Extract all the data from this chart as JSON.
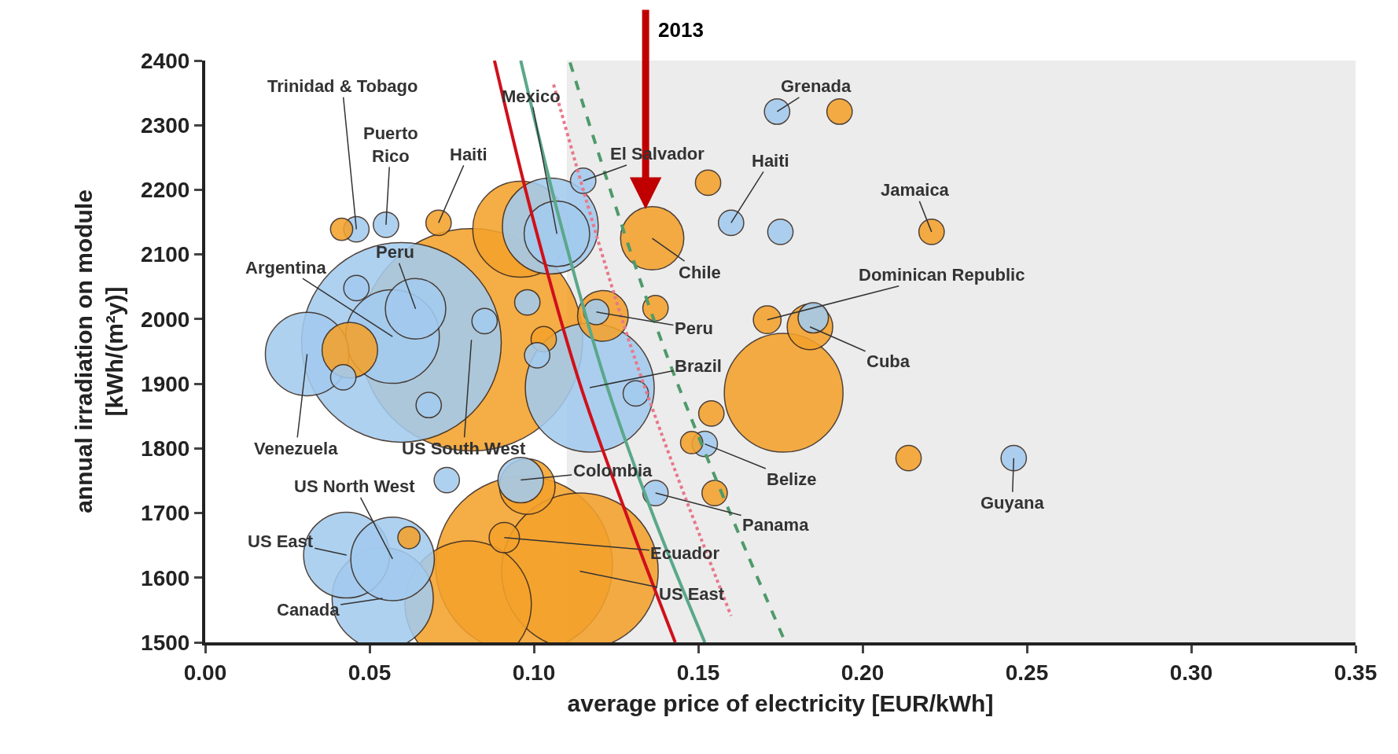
{
  "chart_data": {
    "type": "bubble",
    "xlabel": "average price of electricity [EUR/kWh]",
    "ylabel": "annual irradiation on module\n[kWh/(m²y)]",
    "series": [
      {
        "color": "#f4a22c",
        "x": [
          0.0415,
          0.071,
          0.096,
          0.081,
          0.044,
          0.103,
          0.136,
          0.121,
          0.137,
          0.176,
          0.154,
          0.148,
          0.155,
          0.098,
          0.062,
          0.097,
          0.091,
          0.114,
          0.08,
          0.153,
          0.193,
          0.221,
          0.171,
          0.184,
          0.214
        ],
        "values": [
          2139,
          2149,
          2139,
          1968,
          1952,
          1969,
          2125,
          2005,
          2017,
          1886,
          1854,
          1809,
          1731,
          1741,
          1662,
          1620,
          1662,
          1610,
          1559,
          2211,
          2321,
          2135,
          1999,
          1988,
          1785
        ],
        "sizes": [
          0.01,
          0.013,
          0.186,
          1,
          0.0625,
          0.013,
          0.081,
          0.052,
          0.013,
          0.285,
          0.013,
          0.01,
          0.013,
          0.0625,
          0.01,
          0.633,
          0.0186,
          0.496,
          0.323,
          0.013,
          0.013,
          0.013,
          0.0156,
          0.042,
          0.013
        ]
      },
      {
        "color": "#a3cbef",
        "x": [
          0.046,
          0.055,
          0.0597,
          0.057,
          0.064,
          0.046,
          0.031,
          0.042,
          0.068,
          0.085,
          0.098,
          0.101,
          0.105,
          0.107,
          0.115,
          0.119,
          0.117,
          0.131,
          0.096,
          0.0735,
          0.043,
          0.057,
          0.054,
          0.152,
          0.137,
          0.16,
          0.174,
          0.175,
          0.185,
          0.246
        ],
        "values": [
          2139,
          2146,
          1964,
          1973,
          2016,
          2048,
          1946,
          1910,
          1867,
          1997,
          2026,
          1944,
          2144,
          2132,
          2214,
          2011,
          1894,
          1885,
          1751,
          1751,
          1635,
          1629,
          1568,
          1807,
          1731,
          2149,
          2321,
          2135,
          2002,
          1785
        ],
        "sizes": [
          0.013,
          0.013,
          0.806,
          0.177,
          0.074,
          0.013,
          0.141,
          0.013,
          0.013,
          0.013,
          0.013,
          0.013,
          0.186,
          0.087,
          0.013,
          0.013,
          0.336,
          0.013,
          0.042,
          0.013,
          0.149,
          0.141,
          0.207,
          0.013,
          0.013,
          0.013,
          0.013,
          0.013,
          0.0186,
          0.013
        ]
      },
      {
        "type": "line",
        "color": "#d0101a",
        "line_style": "solid",
        "x": [
          0.088,
          0.1,
          0.114,
          0.128,
          0.143
        ],
        "values": [
          2400,
          2150,
          1900,
          1700,
          1500
        ]
      },
      {
        "type": "line",
        "color": "#5aa88a",
        "line_style": "solid",
        "x": [
          0.096,
          0.108,
          0.122,
          0.136,
          0.152
        ],
        "values": [
          2400,
          2150,
          1900,
          1700,
          1500
        ]
      },
      {
        "type": "line",
        "color": "#e8788a",
        "line_style": "dotted",
        "x": [
          0.106,
          0.13,
          0.16
        ],
        "values": [
          2363,
          1950,
          1541
        ]
      },
      {
        "type": "line",
        "color": "#4f9a6a",
        "line_style": "dashed",
        "x": [
          0.111,
          0.14,
          0.176
        ],
        "values": [
          2397,
          1950,
          1506
        ]
      }
    ],
    "xlim": [
      0,
      0.35
    ],
    "xticks": [
      {
        "value": 0,
        "label": "0.00"
      },
      0.05,
      {
        "value": 0.1,
        "label": "0.10"
      },
      0.15,
      {
        "value": 0.2,
        "label": "0.20"
      },
      0.25,
      {
        "value": 0.3,
        "label": "0.30"
      },
      0.35
    ],
    "ylim": [
      1500,
      2400
    ],
    "yticks": [
      1500,
      1600,
      1700,
      1800,
      1900,
      2000,
      2100,
      2200,
      2300,
      2400
    ],
    "bands": [
      {
        "axis": "x",
        "from": 0.11,
        "to": 0.35,
        "color": "#ececec"
      }
    ],
    "grid": false,
    "annotations": [
      {
        "text": "2013",
        "x": 0.134,
        "y": 2170
      },
      {
        "text": "Trinidad & Tobago",
        "x": 0.046,
        "y": 2139
      },
      {
        "text": "Puerto\nRico",
        "x": 0.055,
        "y": 2146
      },
      {
        "text": "Haiti",
        "x": 0.071,
        "y": 2149
      },
      {
        "text": "Mexico",
        "x": 0.107,
        "y": 2132
      },
      {
        "text": "El Salvador",
        "x": 0.115,
        "y": 2214
      },
      {
        "text": "Haiti",
        "x": 0.16,
        "y": 2149
      },
      {
        "text": "Grenada",
        "x": 0.174,
        "y": 2321
      },
      {
        "text": "Jamaica",
        "x": 0.221,
        "y": 2135
      },
      {
        "text": "Chile",
        "x": 0.136,
        "y": 2125
      },
      {
        "text": "Dominican Republic",
        "x": 0.171,
        "y": 1999
      },
      {
        "text": "Argentina",
        "x": 0.057,
        "y": 1973
      },
      {
        "text": "Peru",
        "x": 0.064,
        "y": 2016
      },
      {
        "text": "Peru",
        "x": 0.119,
        "y": 2011
      },
      {
        "text": "Cuba",
        "x": 0.184,
        "y": 1988
      },
      {
        "text": "Brazil",
        "x": 0.117,
        "y": 1894
      },
      {
        "text": "Venezuela",
        "x": 0.031,
        "y": 1946
      },
      {
        "text": "US South West",
        "x": 0.081,
        "y": 1968
      },
      {
        "text": "Belize",
        "x": 0.152,
        "y": 1807
      },
      {
        "text": "Colombia",
        "x": 0.096,
        "y": 1751
      },
      {
        "text": "Guyana",
        "x": 0.246,
        "y": 1785
      },
      {
        "text": "US North West",
        "x": 0.057,
        "y": 1629
      },
      {
        "text": "Panama",
        "x": 0.137,
        "y": 1731
      },
      {
        "text": "US East",
        "x": 0.043,
        "y": 1635
      },
      {
        "text": "Ecuador",
        "x": 0.091,
        "y": 1662
      },
      {
        "text": "US East",
        "x": 0.114,
        "y": 1610
      },
      {
        "text": "Canada",
        "x": 0.054,
        "y": 1568
      }
    ]
  }
}
